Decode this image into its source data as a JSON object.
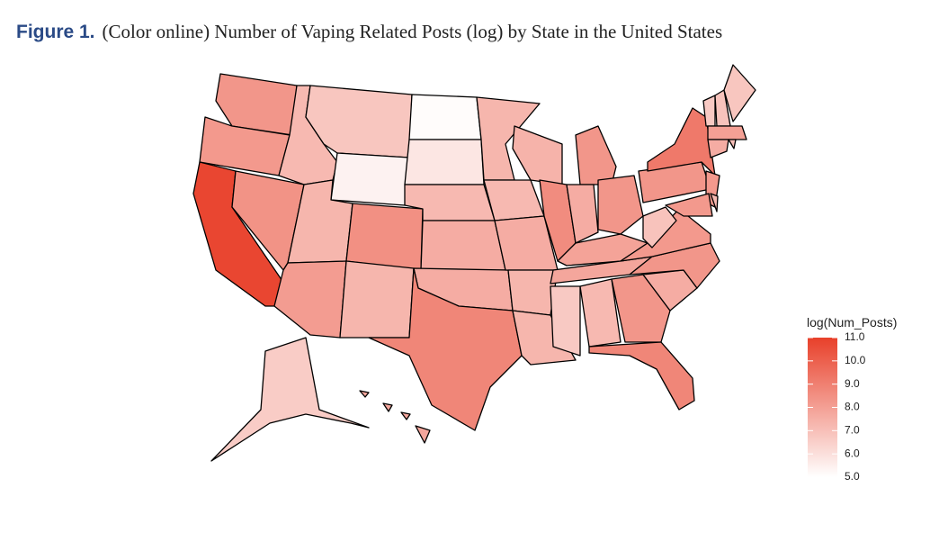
{
  "chart_data": {
    "type": "choropleth",
    "figure_label": "Figure 1.",
    "title": "(Color online) Number of Vaping Related Posts (log) by State in the United States",
    "values": [
      8.3,
      8.2,
      10.8,
      8.4,
      7.2,
      6.8,
      5.4,
      7.3,
      8.1,
      8.5,
      7.3,
      5.1,
      5.8,
      7.2,
      7.6,
      7.6,
      8.8,
      7.3,
      7.2,
      7.6,
      7.3,
      7.3,
      7.4,
      8.6,
      8.3,
      7.6,
      8.3,
      7.9,
      7.8,
      6.7,
      7.2,
      8.3,
      8.8,
      7.6,
      8.3,
      8.2,
      6.9,
      8.3,
      9.2,
      8.2,
      8.2,
      7.2,
      6.7,
      6.9,
      6.8,
      8.0,
      7.6,
      7.0,
      6.6,
      7.8
    ],
    "legend": {
      "title": "log(Num_Posts)",
      "lim": [
        5,
        11
      ],
      "ticks": [
        {
          "value": 5,
          "label": "5.0"
        },
        {
          "value": 6,
          "label": "6.0"
        },
        {
          "value": 7,
          "label": "7.0"
        },
        {
          "value": 8,
          "label": "8.0"
        },
        {
          "value": 9,
          "label": "9.0"
        },
        {
          "value": 10,
          "label": "10.0"
        },
        {
          "value": 11,
          "label": "11.0"
        }
      ],
      "colors": [
        "#ffffff",
        "#e8402a"
      ]
    }
  }
}
